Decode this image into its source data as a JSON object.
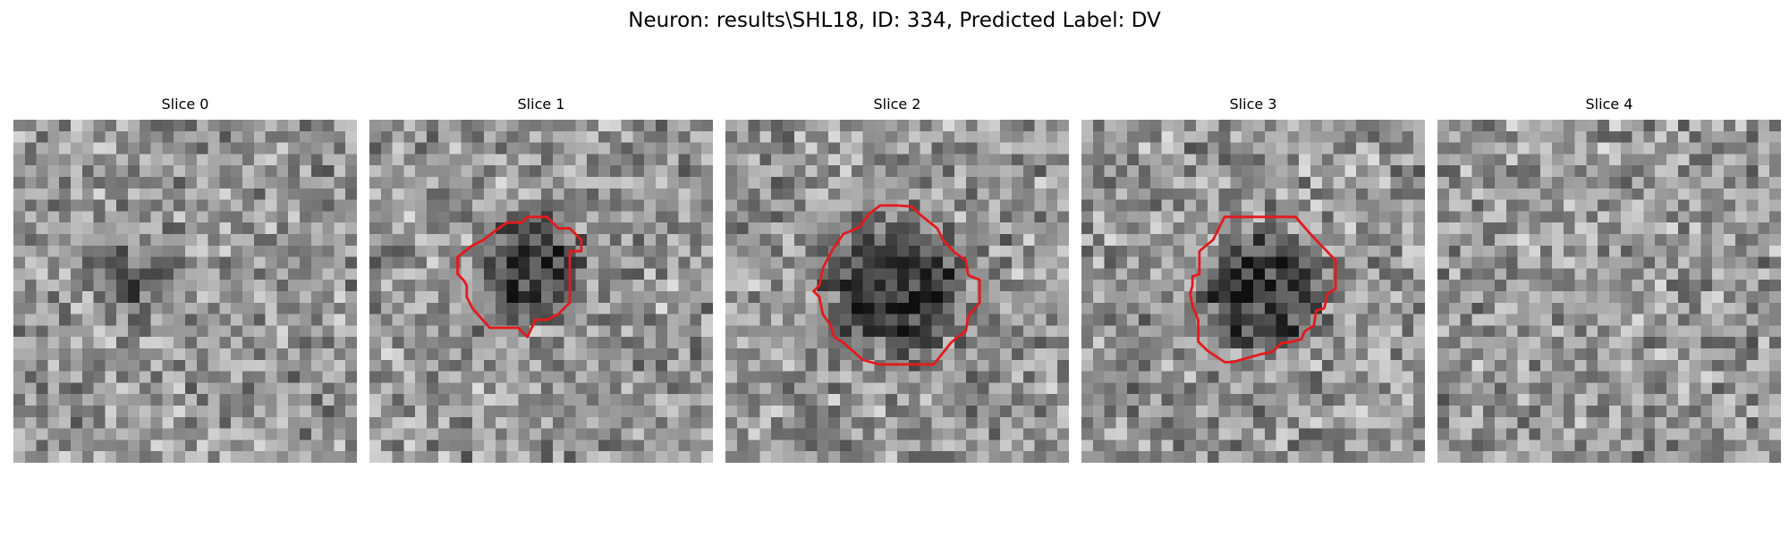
{
  "figure": {
    "title": "Neuron: results\\SHL18, ID: 334, Predicted Label: DV"
  },
  "panels": [
    {
      "title": "Slice 0",
      "has_contour": false,
      "dark_spot": 0.45,
      "spot_radius": 0.16
    },
    {
      "title": "Slice 1",
      "has_contour": true,
      "dark_spot": 0.95,
      "spot_radius": 0.19
    },
    {
      "title": "Slice 2",
      "has_contour": true,
      "dark_spot": 1.0,
      "spot_radius": 0.26
    },
    {
      "title": "Slice 3",
      "has_contour": true,
      "dark_spot": 1.0,
      "spot_radius": 0.22
    },
    {
      "title": "Slice 4",
      "has_contour": false,
      "dark_spot": 0.0,
      "spot_radius": 0.0
    }
  ],
  "colors": {
    "contour": "#e41a1c",
    "background": "#ffffff"
  }
}
